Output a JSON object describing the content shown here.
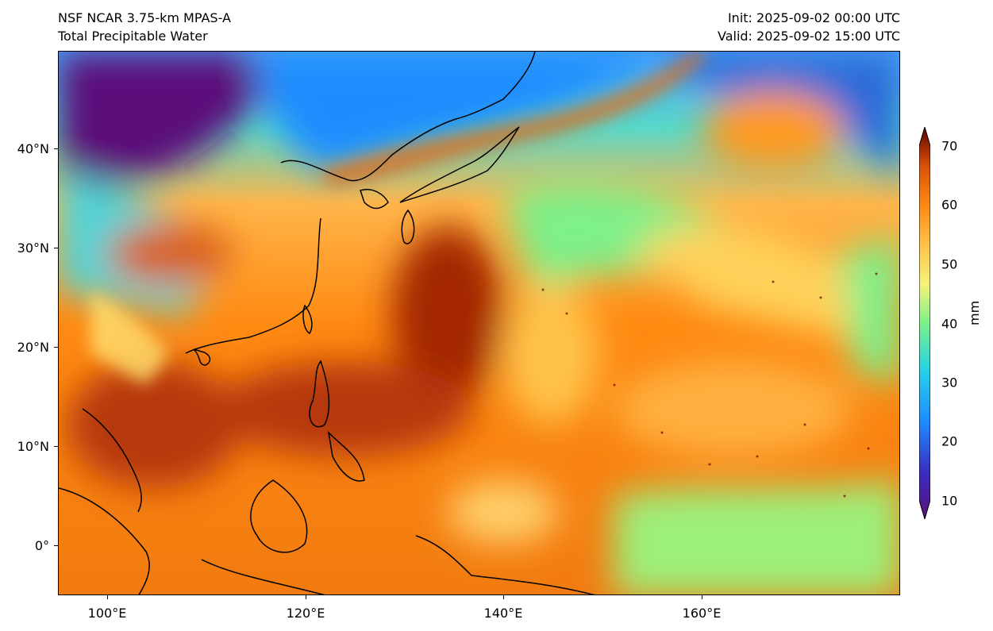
{
  "header": {
    "line1_left": "NSF NCAR 3.75-km MPAS-A",
    "line2_left": "Total Precipitable Water",
    "init": "Init: 2025-09-02 00:00 UTC",
    "valid": "Valid: 2025-09-02 15:00 UTC"
  },
  "map": {
    "lat_ticks": [
      "40°N",
      "30°N",
      "20°N",
      "10°N",
      "0°"
    ],
    "lon_ticks": [
      "100°E",
      "120°E",
      "140°E",
      "160°E"
    ],
    "region": "West Pacific"
  },
  "colorbar": {
    "ticks": [
      "70",
      "60",
      "50",
      "40",
      "30",
      "20",
      "10"
    ],
    "unit": "mm",
    "colors": [
      "#5b0f7a",
      "#2a36c9",
      "#1e8cff",
      "#27d2e6",
      "#7ef08a",
      "#f6f27a",
      "#ffc24a",
      "#ff8a12",
      "#d9520a",
      "#9a1b03",
      "#5e0000"
    ]
  }
}
